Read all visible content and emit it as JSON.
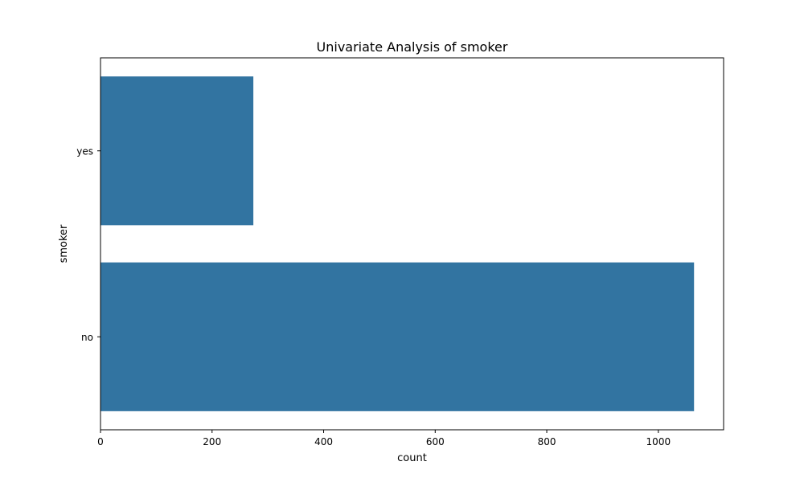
{
  "chart_data": {
    "type": "bar",
    "orientation": "horizontal",
    "title": "Univariate Analysis of smoker",
    "xlabel": "count",
    "ylabel": "smoker",
    "categories": [
      "yes",
      "no"
    ],
    "values": [
      274,
      1064
    ],
    "xlim": [
      0,
      1117
    ],
    "xticks": [
      0,
      200,
      400,
      600,
      800,
      1000
    ],
    "grid": false,
    "legend": "none",
    "bar_color": "#3274a1"
  }
}
